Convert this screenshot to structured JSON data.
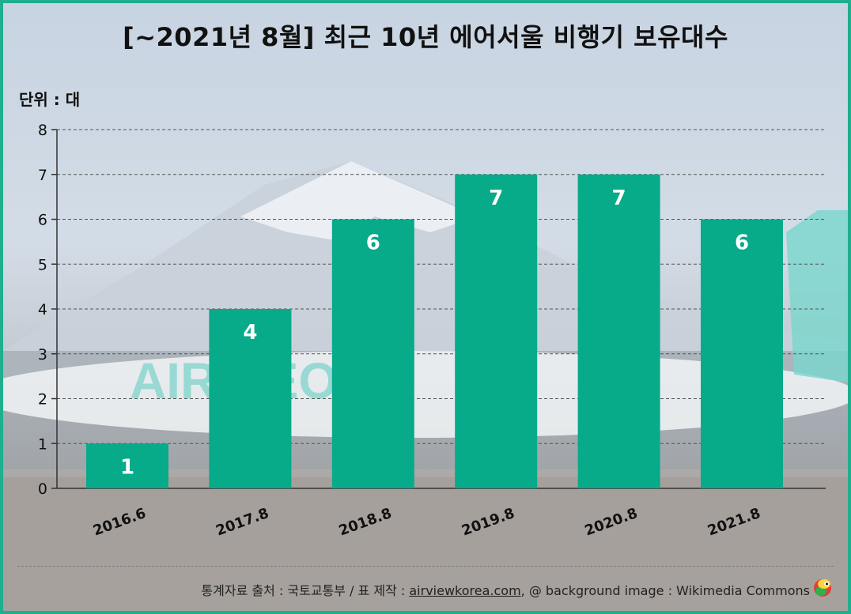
{
  "header": {
    "title": "[~2021년 8월] 최근 10년 에어서울 비행기 보유대수",
    "unit": "단위 : 대"
  },
  "footer": {
    "source_prefix": "통계자료 출처 : 국토교통부 / 표 제작 : ",
    "site": "airviewkorea.com",
    "suffix": ", @ background image : Wikimedia Commons",
    "mascot_icon": "parrot-mascot-icon"
  },
  "colors": {
    "bar": "#07aa89",
    "border": "#1fae8e",
    "label_text": "#ffffff"
  },
  "background": {
    "airline_text": "AIR SEOUL"
  },
  "chart_data": {
    "type": "bar",
    "title": "[~2021년 8월] 최근 10년 에어서울 비행기 보유대수",
    "ylabel": "단위 : 대",
    "xlabel": "",
    "categories": [
      "2016.6",
      "2017.8",
      "2018.8",
      "2019.8",
      "2020.8",
      "2021.8"
    ],
    "values": [
      1,
      4,
      6,
      7,
      7,
      6
    ],
    "ylim": [
      0,
      8
    ],
    "yticks": [
      0,
      1,
      2,
      3,
      4,
      5,
      6,
      7,
      8
    ],
    "grid": true,
    "legend": "none"
  }
}
